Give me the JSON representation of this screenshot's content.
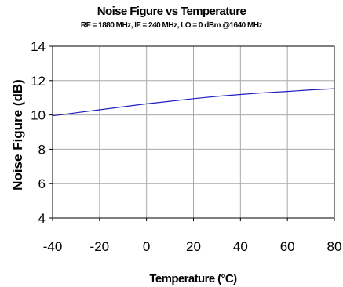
{
  "chart_data": {
    "type": "line",
    "title": "Noise Figure vs Temperature",
    "subtitle": "RF = 1880 MHz, IF = 240 MHz, LO = 0 dBm @1640 MHz",
    "xlabel": "Temperature (°C)",
    "ylabel": "Noise Figure (dB)",
    "xlim": [
      -40,
      80
    ],
    "ylim": [
      4,
      14
    ],
    "x_ticks": [
      -40,
      -20,
      0,
      20,
      40,
      60,
      80
    ],
    "y_ticks": [
      4,
      6,
      8,
      10,
      12,
      14
    ],
    "grid": true,
    "legend": "none",
    "series": [
      {
        "color": "#1f1fbf",
        "x": [
          -40,
          -30,
          -20,
          -10,
          0,
          10,
          20,
          30,
          40,
          50,
          60,
          70,
          80
        ],
        "y": [
          9.95,
          10.13,
          10.3,
          10.48,
          10.65,
          10.8,
          10.95,
          11.08,
          11.19,
          11.29,
          11.37,
          11.46,
          11.53
        ]
      }
    ]
  }
}
